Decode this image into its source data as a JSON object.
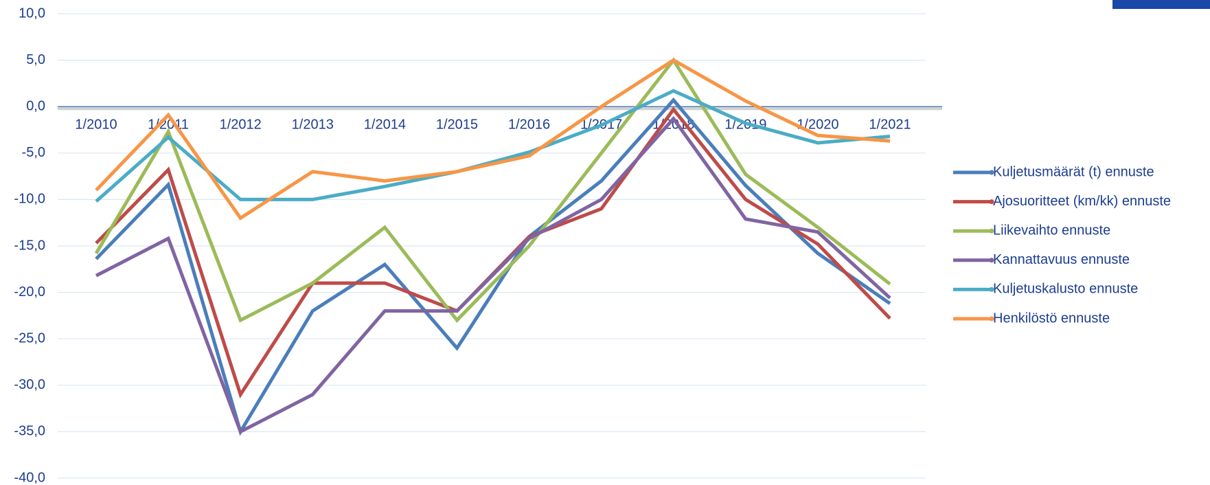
{
  "chart_data": {
    "type": "line",
    "categories": [
      "1/2010",
      "1/2011",
      "1/2012",
      "1/2013",
      "1/2014",
      "1/2015",
      "1/2016",
      "1/2017",
      "1/2018",
      "1/2019",
      "1/2020",
      "1/2021"
    ],
    "series": [
      {
        "name": "Kuljetusmäärät (t) ennuste",
        "color": "#4a7ebb",
        "values": [
          -16.4,
          -8.4,
          -35,
          -22,
          -17,
          -26,
          -14,
          -8,
          0.7,
          -8.5,
          -15.8,
          -21.2
        ]
      },
      {
        "name": "Ajosuoritteet (km/kk) ennuste",
        "color": "#be4b48",
        "values": [
          -14.7,
          -6.8,
          -31,
          -19,
          -19,
          -22,
          -14,
          -11,
          -0.3,
          -10,
          -14.8,
          -22.8
        ]
      },
      {
        "name": "Liikevaihto ennuste",
        "color": "#9bbb59",
        "values": [
          -15.8,
          -2.7,
          -23,
          -19,
          -13,
          -23,
          -15,
          -5,
          5,
          -7.3,
          -13,
          -19.1
        ]
      },
      {
        "name": "Kannattavuus ennuste",
        "color": "#8064a2",
        "values": [
          -18.2,
          -14.2,
          -35,
          -31,
          -22,
          -22,
          -14.2,
          -10,
          -1.3,
          -12.1,
          -13.5,
          -20.6
        ]
      },
      {
        "name": "Kuljetuskalusto ennuste",
        "color": "#4bacc6",
        "values": [
          -10.2,
          -3.3,
          -10,
          -10,
          -8.6,
          -7,
          -4.9,
          -2,
          1.7,
          -1.8,
          -3.9,
          -3.2
        ]
      },
      {
        "name": "Henkilöstö ennuste",
        "color": "#f79646",
        "values": [
          -9,
          -0.9,
          -12,
          -7,
          -8,
          -7,
          -5.3,
          0,
          5,
          0.6,
          -3.1,
          -3.7
        ]
      }
    ],
    "ylim": [
      -40,
      10
    ],
    "yticks": [
      {
        "value": -40,
        "label": "-40,0"
      },
      {
        "value": -35,
        "label": "-35,0"
      },
      {
        "value": -30,
        "label": "-30,0"
      },
      {
        "value": -25,
        "label": "-25,0"
      },
      {
        "value": -20,
        "label": "-20,0"
      },
      {
        "value": -15,
        "label": "-15,0"
      },
      {
        "value": -10,
        "label": "-10,0"
      },
      {
        "value": -5,
        "label": "-5,0"
      },
      {
        "value": 0,
        "label": "0,0"
      },
      {
        "value": 5,
        "label": "5,0"
      },
      {
        "value": 10,
        "label": "10,0"
      }
    ],
    "grid": true,
    "legend": "right"
  }
}
